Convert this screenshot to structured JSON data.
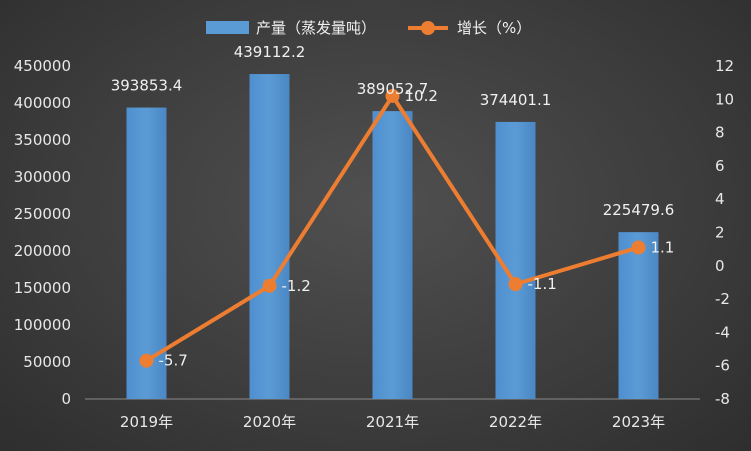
{
  "colors": {
    "bar": "#5b9bd5",
    "line": "#ed7d31",
    "background": "#3a3a3a"
  },
  "chart_data": {
    "type": "bar",
    "categories": [
      "2019年",
      "2020年",
      "2021年",
      "2022年",
      "2023年"
    ],
    "series": [
      {
        "name": "产量（蒸发量吨）",
        "type": "bar",
        "axis": "left",
        "values": [
          393853.4,
          439112.2,
          389052.7,
          374401.1,
          225479.6
        ],
        "labels": [
          "393853.4",
          "439112.2",
          "389052.7",
          "374401.1",
          "225479.6"
        ]
      },
      {
        "name": "增长（%）",
        "type": "line",
        "axis": "right",
        "values": [
          -5.7,
          -1.2,
          10.2,
          -1.1,
          1.1
        ],
        "labels": [
          "-5.7",
          "-1.2",
          "10.2",
          "-1.1",
          "1.1"
        ]
      }
    ],
    "y_left": {
      "ylim": [
        0,
        450000
      ],
      "ticks": [
        "0",
        "50000",
        "100000",
        "150000",
        "200000",
        "250000",
        "300000",
        "350000",
        "400000",
        "450000"
      ]
    },
    "y_right": {
      "ylim": [
        -8,
        12
      ],
      "ticks": [
        "-8",
        "-6",
        "-4",
        "-2",
        "0",
        "2",
        "4",
        "6",
        "8",
        "10",
        "12"
      ]
    },
    "legend_position": "top-center",
    "grid": false
  }
}
